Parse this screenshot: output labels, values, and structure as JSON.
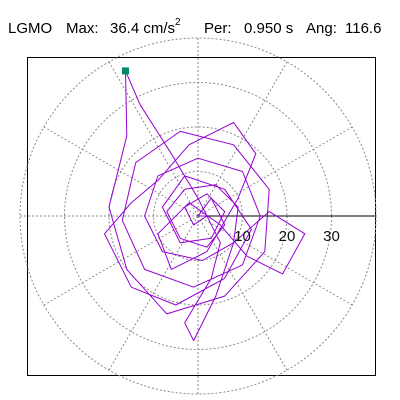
{
  "header": {
    "station": "LGMO",
    "max_label": "Max:",
    "max_value": "36.4",
    "max_unit": "cm/s",
    "max_unit_exp": "2",
    "per_label": "Per:",
    "per_value": "0.950 s",
    "ang_label": "Ang:",
    "ang_value": "116.6"
  },
  "chart_data": {
    "type": "line",
    "plot": "polar particle-motion orbit",
    "title": "",
    "xlabel": "",
    "ylabel": "",
    "radial_rings": [
      10,
      20,
      30,
      40
    ],
    "angular_spokes_deg": [
      0,
      30,
      60,
      90,
      120,
      150,
      180,
      210,
      240,
      270,
      300,
      330
    ],
    "tick_labels": [
      {
        "text": "10",
        "value": 10
      },
      {
        "text": "20",
        "value": 20
      },
      {
        "text": "30",
        "value": 30
      }
    ],
    "xlim": [
      -39,
      39
    ],
    "ylim": [
      -36,
      36
    ],
    "grid": true,
    "legend": "none",
    "peak_amplitude": 36.4,
    "peak_angle_deg": 116.6,
    "peak_marker_point": {
      "x": -16.3,
      "y": 32.6
    },
    "series": [
      {
        "color": "#9400d3",
        "points": [
          [
            0,
            0
          ],
          [
            3,
            4
          ],
          [
            6,
            -2
          ],
          [
            2,
            -7
          ],
          [
            -4,
            -5
          ],
          [
            -7,
            1
          ],
          [
            -3,
            6
          ],
          [
            4,
            7
          ],
          [
            9,
            2
          ],
          [
            8,
            -6
          ],
          [
            1,
            -10
          ],
          [
            -8,
            -8
          ],
          [
            -12,
            0
          ],
          [
            -9,
            9
          ],
          [
            0,
            13
          ],
          [
            10,
            10
          ],
          [
            14,
            0
          ],
          [
            10,
            -11
          ],
          [
            -1,
            -16
          ],
          [
            -12,
            -12
          ],
          [
            -17,
            -1
          ],
          [
            -14,
            12
          ],
          [
            -4,
            19
          ],
          [
            8,
            16
          ],
          [
            16,
            6
          ],
          [
            15,
            -8
          ],
          [
            6,
            -18
          ],
          [
            -7,
            -22
          ],
          [
            -16,
            -12
          ],
          [
            -20,
            2
          ],
          [
            -16,
            18
          ],
          [
            -16.3,
            32.6
          ],
          [
            -13,
            25
          ],
          [
            -6,
            14
          ],
          [
            0,
            4
          ],
          [
            5,
            -6
          ],
          [
            3,
            -14
          ],
          [
            -3,
            -24
          ],
          [
            -1,
            -28
          ],
          [
            4,
            -18
          ],
          [
            8,
            -6
          ],
          [
            16,
            1
          ],
          [
            24,
            -4
          ],
          [
            19,
            -13
          ],
          [
            11,
            -9
          ],
          [
            5,
            -2
          ],
          [
            -2,
            3
          ],
          [
            -9,
            -4
          ],
          [
            -6,
            -12
          ],
          [
            2,
            -8
          ],
          [
            9,
            4
          ],
          [
            13,
            14
          ],
          [
            8,
            21
          ],
          [
            -2,
            16
          ],
          [
            -9,
            8
          ],
          [
            -15,
            3
          ],
          [
            -21,
            -4
          ],
          [
            -15,
            -16
          ],
          [
            -5,
            -20
          ],
          [
            6,
            -14
          ],
          [
            12,
            -3
          ],
          [
            6,
            6
          ],
          [
            -3,
            9
          ],
          [
            -8,
            2
          ],
          [
            -4,
            -6
          ],
          [
            3,
            -5
          ],
          [
            6,
            1
          ],
          [
            2,
            5
          ],
          [
            -3,
            2
          ],
          [
            -1,
            -2
          ],
          [
            2,
            0
          ],
          [
            0,
            0
          ]
        ]
      }
    ]
  }
}
